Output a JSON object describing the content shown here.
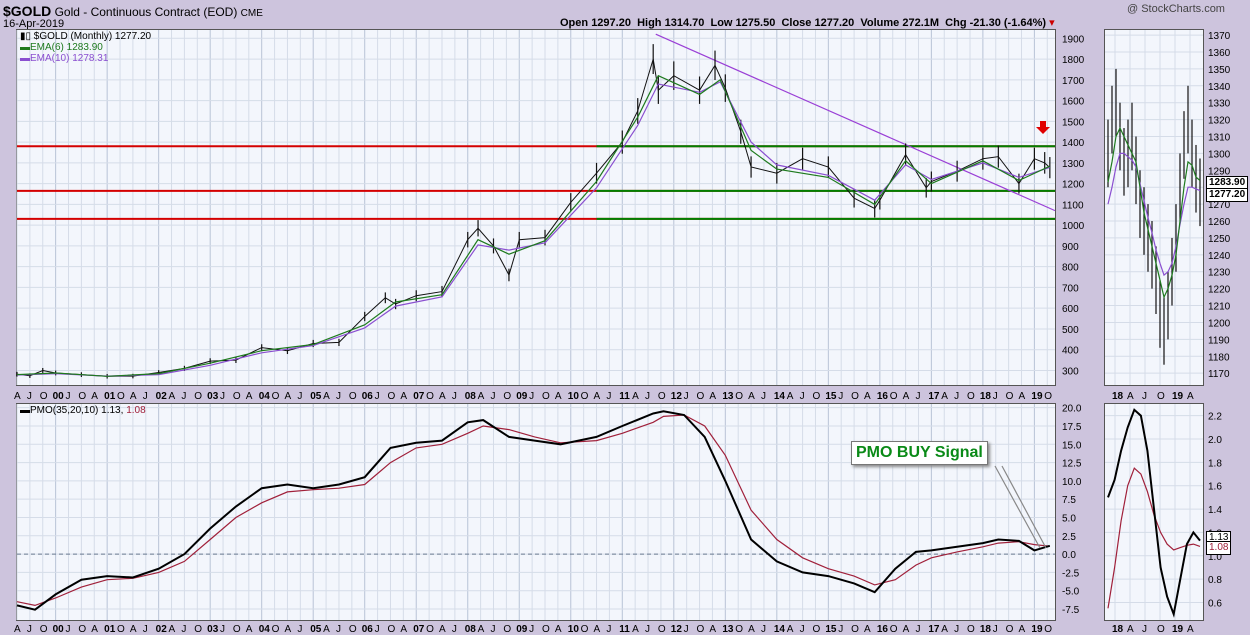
{
  "header": {
    "symbol": "$GOLD",
    "name": "Gold - Continuous Contract (EOD)",
    "exchange": "CME",
    "date": "16-Apr-2019",
    "watermark": "@ StockCharts.com",
    "open_label": "Open",
    "open": "1297.20",
    "high_label": "High",
    "high": "1314.70",
    "low_label": "Low",
    "low": "1275.50",
    "close_label": "Close",
    "close": "1277.20",
    "volume_label": "Volume",
    "volume": "272.1M",
    "chg_label": "Chg",
    "chg": "-21.30 (-1.64%)"
  },
  "legend": {
    "main": "$GOLD (Monthly) 1277.20",
    "ema6": "EMA(6) 1283.90",
    "ema10": "EMA(10) 1278.31",
    "pmo_label": "PMO(35,20,10)",
    "pmo_val": "1.13,",
    "pmo_sig": "1.08"
  },
  "tags": {
    "price_ema": "1283.90",
    "price_close": "1277.20",
    "pmo": "1.13",
    "pmo_sig": "1.08"
  },
  "callout": "PMO BUY Signal",
  "colors": {
    "background": "#cdc4dd",
    "panel": "#f3f6fc",
    "ema6": "#1e7a1e",
    "ema10": "#8a4fd0",
    "resistance": "#d40000",
    "support": "#008000",
    "trendline": "#9a3fd6",
    "pmo": "#000000",
    "pmo_signal": "#a0203a",
    "arrow": "#e00000",
    "callout_text": "#0a8a17"
  },
  "chart_data": [
    {
      "type": "line",
      "title": "$GOLD Monthly price",
      "yticks": [
        300,
        400,
        500,
        600,
        700,
        800,
        900,
        1000,
        1100,
        1200,
        1300,
        1400,
        1500,
        1600,
        1700,
        1800,
        1900
      ],
      "ylim": [
        230,
        1940
      ],
      "xlim": [
        1999.25,
        2019.4
      ],
      "year_labels": [
        "00",
        "01",
        "02",
        "03",
        "04",
        "05",
        "06",
        "07",
        "08",
        "09",
        "10",
        "11",
        "12",
        "13",
        "14",
        "15",
        "16",
        "17",
        "18",
        "19"
      ],
      "month_letters": [
        "A",
        "J",
        "O"
      ],
      "series": [
        {
          "name": "$GOLD (Monthly)",
          "x": [
            1999.25,
            1999.5,
            1999.75,
            2000.0,
            2000.5,
            2001.0,
            2001.5,
            2002.0,
            2002.5,
            2003.0,
            2003.5,
            2004.0,
            2004.5,
            2005.0,
            2005.5,
            2006.0,
            2006.4,
            2006.6,
            2007.0,
            2007.5,
            2008.0,
            2008.2,
            2008.5,
            2008.8,
            2009.0,
            2009.5,
            2010.0,
            2010.5,
            2011.0,
            2011.3,
            2011.6,
            2011.7,
            2012.0,
            2012.5,
            2012.8,
            2013.0,
            2013.3,
            2013.5,
            2014.0,
            2014.5,
            2015.0,
            2015.5,
            2015.9,
            2016.0,
            2016.5,
            2016.9,
            2017.0,
            2017.5,
            2018.0,
            2018.3,
            2018.7,
            2019.0,
            2019.2,
            2019.3
          ],
          "values": [
            282,
            275,
            300,
            288,
            280,
            272,
            273,
            290,
            310,
            345,
            350,
            410,
            395,
            430,
            435,
            560,
            650,
            620,
            660,
            680,
            930,
            985,
            900,
            760,
            930,
            940,
            1110,
            1250,
            1400,
            1550,
            1800,
            1650,
            1720,
            1650,
            1770,
            1660,
            1450,
            1280,
            1250,
            1320,
            1280,
            1130,
            1080,
            1120,
            1340,
            1180,
            1210,
            1260,
            1320,
            1330,
            1200,
            1320,
            1300,
            1277
          ]
        },
        {
          "name": "EMA(6)",
          "x": [
            1999.25,
            2000.0,
            2001.0,
            2002.0,
            2003.0,
            2004.0,
            2005.0,
            2006.0,
            2006.6,
            2007.5,
            2008.2,
            2008.8,
            2009.5,
            2010.5,
            2011.3,
            2011.7,
            2012.5,
            2012.9,
            2013.5,
            2014.0,
            2015.0,
            2015.9,
            2016.5,
            2017.0,
            2018.0,
            2018.7,
            2019.3
          ],
          "values": [
            280,
            288,
            272,
            285,
            335,
            395,
            425,
            520,
            630,
            665,
            930,
            860,
            925,
            1210,
            1520,
            1720,
            1630,
            1700,
            1360,
            1270,
            1230,
            1100,
            1310,
            1200,
            1310,
            1215,
            1284
          ]
        },
        {
          "name": "EMA(10)",
          "x": [
            1999.25,
            2000.0,
            2001.0,
            2002.0,
            2003.0,
            2004.0,
            2005.0,
            2006.0,
            2006.6,
            2007.5,
            2008.2,
            2008.8,
            2009.5,
            2010.5,
            2011.3,
            2011.7,
            2012.5,
            2012.9,
            2013.5,
            2014.0,
            2015.0,
            2015.9,
            2016.5,
            2017.0,
            2018.0,
            2018.7,
            2019.3
          ],
          "values": [
            278,
            285,
            273,
            280,
            325,
            385,
            420,
            505,
            610,
            655,
            905,
            880,
            915,
            1180,
            1480,
            1680,
            1640,
            1690,
            1400,
            1290,
            1240,
            1120,
            1290,
            1220,
            1300,
            1230,
            1278
          ]
        }
      ],
      "horizontal_lines": [
        {
          "y": 1380,
          "color": "resistance"
        },
        {
          "y": 1380,
          "color": "support",
          "from_x": 2010.5
        },
        {
          "y": 1165,
          "color": "resistance"
        },
        {
          "y": 1165,
          "color": "support",
          "from_x": 2010.5
        },
        {
          "y": 1030,
          "color": "resistance"
        },
        {
          "y": 1030,
          "color": "support",
          "from_x": 2010.5
        }
      ],
      "trendline": {
        "x": [
          2011.65,
          2019.4
        ],
        "y": [
          1920,
          1070
        ]
      }
    },
    {
      "type": "line",
      "title": "$GOLD Daily price (inset)",
      "yticks": [
        1170,
        1180,
        1190,
        1200,
        1210,
        1220,
        1230,
        1240,
        1250,
        1260,
        1270,
        1280,
        1290,
        1300,
        1310,
        1320,
        1330,
        1340,
        1350,
        1360,
        1370
      ],
      "ylim": [
        1163,
        1373
      ],
      "year_labels": [
        "18",
        "19"
      ],
      "month_letters": [
        "A",
        "J",
        "O",
        "A"
      ],
      "series": [
        {
          "name": "price",
          "values": [
            1300,
            1320,
            1330,
            1310,
            1295,
            1300,
            1310,
            1290,
            1270,
            1260,
            1250,
            1240,
            1225,
            1205,
            1195,
            1210,
            1230,
            1250,
            1280,
            1305,
            1320,
            1300,
            1285,
            1277
          ]
        },
        {
          "name": "EMA(6)",
          "values": [
            1283,
            1295,
            1310,
            1315,
            1310,
            1305,
            1300,
            1295,
            1280,
            1265,
            1255,
            1245,
            1235,
            1225,
            1215,
            1220,
            1228,
            1240,
            1260,
            1280,
            1295,
            1293,
            1286,
            1284
          ]
        },
        {
          "name": "EMA(10)",
          "values": [
            1270,
            1280,
            1292,
            1300,
            1300,
            1298,
            1296,
            1292,
            1282,
            1272,
            1262,
            1253,
            1243,
            1235,
            1228,
            1230,
            1235,
            1245,
            1258,
            1270,
            1280,
            1280,
            1279,
            1278
          ]
        }
      ]
    },
    {
      "type": "line",
      "title": "PMO(35,20,10)",
      "yticks": [
        -7.5,
        -5.0,
        -2.5,
        0.0,
        2.5,
        5.0,
        7.5,
        10.0,
        12.5,
        15.0,
        17.5,
        20.0
      ],
      "ylim": [
        -9,
        20.5
      ],
      "series": [
        {
          "name": "PMO",
          "x": [
            1999.25,
            1999.6,
            2000.0,
            2000.5,
            2001.0,
            2001.5,
            2002.0,
            2002.5,
            2003.0,
            2003.5,
            2004.0,
            2004.5,
            2005.0,
            2005.5,
            2006.0,
            2006.5,
            2007.0,
            2007.5,
            2008.0,
            2008.3,
            2008.8,
            2009.3,
            2009.8,
            2010.5,
            2011.0,
            2011.6,
            2011.8,
            2012.2,
            2012.6,
            2013.0,
            2013.5,
            2014.0,
            2014.5,
            2015.0,
            2015.5,
            2015.9,
            2016.3,
            2016.7,
            2017.0,
            2017.5,
            2018.0,
            2018.3,
            2018.7,
            2019.0,
            2019.3
          ],
          "values": [
            -7.0,
            -7.6,
            -5.5,
            -3.5,
            -3.0,
            -3.2,
            -2.0,
            0.0,
            3.5,
            6.5,
            9.0,
            9.5,
            9.0,
            9.5,
            10.5,
            14.5,
            15.2,
            15.5,
            18.0,
            18.3,
            16.0,
            15.5,
            15.0,
            16.0,
            17.5,
            19.2,
            19.5,
            19.0,
            16.0,
            10.0,
            2.0,
            -1.0,
            -2.5,
            -3.0,
            -4.0,
            -5.2,
            -2.0,
            0.3,
            0.5,
            1.0,
            1.5,
            2.0,
            1.8,
            0.5,
            1.13
          ]
        },
        {
          "name": "Signal",
          "x": [
            1999.25,
            1999.6,
            2000.0,
            2000.5,
            2001.0,
            2001.5,
            2002.0,
            2002.5,
            2003.0,
            2003.5,
            2004.0,
            2004.5,
            2005.0,
            2005.5,
            2006.0,
            2006.5,
            2007.0,
            2007.5,
            2008.0,
            2008.3,
            2008.8,
            2009.3,
            2009.8,
            2010.5,
            2011.0,
            2011.6,
            2011.8,
            2012.2,
            2012.6,
            2013.0,
            2013.5,
            2014.0,
            2014.5,
            2015.0,
            2015.5,
            2015.9,
            2016.3,
            2016.7,
            2017.0,
            2017.5,
            2018.0,
            2018.3,
            2018.7,
            2019.0,
            2019.3
          ],
          "values": [
            -6.5,
            -7.0,
            -6.0,
            -4.5,
            -3.5,
            -3.3,
            -2.5,
            -1.0,
            2.0,
            5.0,
            7.0,
            8.5,
            8.8,
            9.0,
            9.5,
            12.5,
            14.5,
            15.0,
            16.5,
            17.5,
            17.0,
            16.0,
            15.2,
            15.5,
            16.5,
            18.0,
            18.8,
            19.0,
            17.5,
            13.5,
            6.0,
            2.0,
            -0.5,
            -2.0,
            -3.0,
            -4.2,
            -3.5,
            -1.5,
            -0.5,
            0.3,
            1.0,
            1.5,
            1.7,
            1.3,
            1.08
          ]
        }
      ]
    },
    {
      "type": "line",
      "title": "PMO Daily (inset)",
      "yticks": [
        0.6,
        0.8,
        1.0,
        1.2,
        1.4,
        1.6,
        1.8,
        2.0,
        2.2
      ],
      "ylim": [
        0.45,
        2.3
      ],
      "series": [
        {
          "name": "PMO",
          "values": [
            1.5,
            1.65,
            1.9,
            2.1,
            2.25,
            2.2,
            1.9,
            1.4,
            0.9,
            0.65,
            0.5,
            0.8,
            1.1,
            1.2,
            1.13
          ]
        },
        {
          "name": "Signal",
          "values": [
            0.55,
            0.9,
            1.3,
            1.6,
            1.75,
            1.7,
            1.55,
            1.35,
            1.2,
            1.1,
            1.05,
            1.07,
            1.09,
            1.1,
            1.08
          ]
        }
      ]
    }
  ]
}
